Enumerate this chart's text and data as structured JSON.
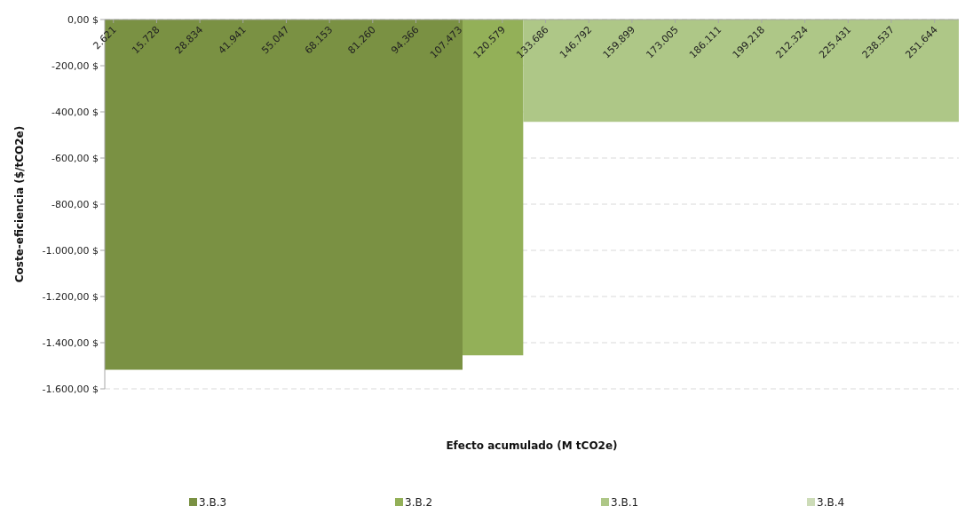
{
  "chart_data": {
    "type": "area",
    "xlabel": "Efecto acumulado (M tCO2e)",
    "ylabel": "Coste-eficiencia  ($/tCO2e)",
    "xlim": [
      0,
      259000
    ],
    "xticks": [
      {
        "value": 2621,
        "label": "2.621"
      },
      {
        "value": 15728,
        "label": "15.728"
      },
      {
        "value": 28834,
        "label": "28.834"
      },
      {
        "value": 41941,
        "label": "41.941"
      },
      {
        "value": 55047,
        "label": "55.047"
      },
      {
        "value": 68153,
        "label": "68.153"
      },
      {
        "value": 81260,
        "label": "81.260"
      },
      {
        "value": 94366,
        "label": "94.366"
      },
      {
        "value": 107473,
        "label": "107.473"
      },
      {
        "value": 120579,
        "label": "120.579"
      },
      {
        "value": 133686,
        "label": "133.686"
      },
      {
        "value": 146792,
        "label": "146.792"
      },
      {
        "value": 159899,
        "label": "159.899"
      },
      {
        "value": 173005,
        "label": "173.005"
      },
      {
        "value": 186111,
        "label": "186.111"
      },
      {
        "value": 199218,
        "label": "199.218"
      },
      {
        "value": 212324,
        "label": "212.324"
      },
      {
        "value": 225431,
        "label": "225.431"
      },
      {
        "value": 238537,
        "label": "238.537"
      },
      {
        "value": 251644,
        "label": "251.644"
      }
    ],
    "ylim": [
      -1600,
      0
    ],
    "yticks": [
      {
        "value": 0,
        "label": "0,00 $"
      },
      {
        "value": -200,
        "label": "-200,00 $"
      },
      {
        "value": -400,
        "label": "-400,00 $"
      },
      {
        "value": -600,
        "label": "-600,00 $"
      },
      {
        "value": -800,
        "label": "-800,00 $"
      },
      {
        "value": -1000,
        "label": "-1.000,00 $"
      },
      {
        "value": -1200,
        "label": "-1.200,00 $"
      },
      {
        "value": -1400,
        "label": "-1.400,00 $"
      },
      {
        "value": -1600,
        "label": "-1.600,00 $"
      }
    ],
    "grid": "y",
    "legend": "bottom",
    "series": [
      {
        "name": "3.B.3",
        "color": "#7a9143",
        "x": [
          0,
          108500
        ],
        "values": [
          -1517,
          -1517
        ]
      },
      {
        "name": "3.B.2",
        "color": "#93b058",
        "x": [
          108500,
          126900
        ],
        "values": [
          -1455,
          -1455
        ]
      },
      {
        "name": "3.B.1",
        "color": "#aec787",
        "x": [
          126900,
          259000
        ],
        "values": [
          -443,
          -443
        ]
      },
      {
        "name": "3.B.4",
        "color": "#cddcb8"
      }
    ]
  }
}
